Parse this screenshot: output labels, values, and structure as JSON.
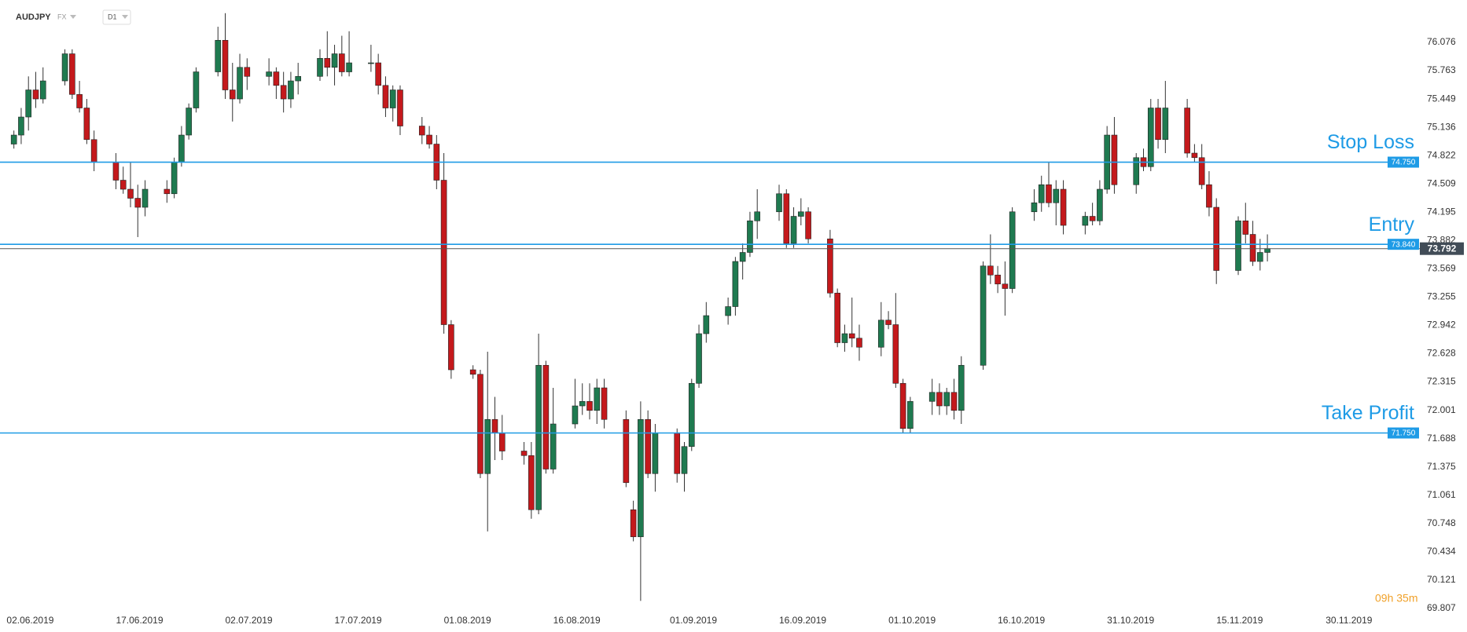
{
  "chart_data": {
    "type": "candlestick",
    "symbol": "AUDJPY",
    "market": "FX",
    "timeframe": "D1",
    "countdown": "09h 35m",
    "up_color": "#1f7a50",
    "down_color": "#c4191c",
    "level_color": "#1e9be6",
    "ylim": [
      69.763,
      76.546
    ],
    "yticks": [
      76.076,
      75.763,
      75.449,
      75.136,
      74.822,
      74.509,
      74.195,
      73.882,
      73.569,
      73.255,
      72.942,
      72.628,
      72.315,
      72.001,
      71.688,
      71.375,
      71.061,
      70.748,
      70.434,
      70.121,
      69.807
    ],
    "xlim": [
      "02.06.2019",
      "12.12.2019"
    ],
    "xticks": [
      "02.06.2019",
      "17.06.2019",
      "02.07.2019",
      "17.07.2019",
      "01.08.2019",
      "16.08.2019",
      "01.09.2019",
      "16.09.2019",
      "01.10.2019",
      "16.10.2019",
      "31.10.2019",
      "15.11.2019",
      "30.11.2019"
    ],
    "grid": false,
    "levels": [
      {
        "name": "Stop Loss",
        "price": {
          "value": 74.75,
          "label": "74.750"
        }
      },
      {
        "name": "Entry",
        "price": {
          "value": 73.84,
          "label": "73.840"
        }
      },
      {
        "name": "Take Profit",
        "price": {
          "value": 71.75,
          "label": "71.750"
        }
      }
    ],
    "last_price": 73.792,
    "candles": [
      {
        "date": "03.06.2019",
        "open": 74.95,
        "high": 75.1,
        "low": 74.9,
        "close": 75.05
      },
      {
        "date": "04.06.2019",
        "open": 75.05,
        "high": 75.35,
        "low": 74.95,
        "close": 75.25
      },
      {
        "date": "05.06.2019",
        "open": 75.25,
        "high": 75.7,
        "low": 75.1,
        "close": 75.55
      },
      {
        "date": "06.06.2019",
        "open": 75.55,
        "high": 75.75,
        "low": 75.35,
        "close": 75.45
      },
      {
        "date": "07.06.2019",
        "open": 75.45,
        "high": 75.8,
        "low": 75.4,
        "close": 75.65
      },
      {
        "date": "10.06.2019",
        "open": 75.65,
        "high": 76.0,
        "low": 75.6,
        "close": 75.95
      },
      {
        "date": "11.06.2019",
        "open": 75.95,
        "high": 76.0,
        "low": 75.45,
        "close": 75.5
      },
      {
        "date": "12.06.2019",
        "open": 75.5,
        "high": 75.65,
        "low": 75.3,
        "close": 75.35
      },
      {
        "date": "13.06.2019",
        "open": 75.35,
        "high": 75.45,
        "low": 74.95,
        "close": 75.0
      },
      {
        "date": "14.06.2019",
        "open": 75.0,
        "high": 75.1,
        "low": 74.65,
        "close": 74.75
      },
      {
        "date": "17.06.2019",
        "open": 74.75,
        "high": 74.85,
        "low": 74.45,
        "close": 74.55
      },
      {
        "date": "18.06.2019",
        "open": 74.55,
        "high": 74.7,
        "low": 74.4,
        "close": 74.45
      },
      {
        "date": "19.06.2019",
        "open": 74.45,
        "high": 74.75,
        "low": 74.25,
        "close": 74.35
      },
      {
        "date": "20.06.2019",
        "open": 74.35,
        "high": 74.5,
        "low": 73.92,
        "close": 74.25
      },
      {
        "date": "21.06.2019",
        "open": 74.25,
        "high": 74.55,
        "low": 74.15,
        "close": 74.45
      },
      {
        "date": "24.06.2019",
        "open": 74.45,
        "high": 74.55,
        "low": 74.3,
        "close": 74.4
      },
      {
        "date": "25.06.2019",
        "open": 74.4,
        "high": 74.8,
        "low": 74.35,
        "close": 74.75
      },
      {
        "date": "26.06.2019",
        "open": 74.75,
        "high": 75.15,
        "low": 74.7,
        "close": 75.05
      },
      {
        "date": "27.06.2019",
        "open": 75.05,
        "high": 75.4,
        "low": 75.0,
        "close": 75.35
      },
      {
        "date": "28.06.2019",
        "open": 75.35,
        "high": 75.8,
        "low": 75.3,
        "close": 75.75
      },
      {
        "date": "01.07.2019",
        "open": 75.75,
        "high": 76.25,
        "low": 75.7,
        "close": 76.1
      },
      {
        "date": "02.07.2019",
        "open": 76.1,
        "high": 76.4,
        "low": 75.45,
        "close": 75.55
      },
      {
        "date": "03.07.2019",
        "open": 75.55,
        "high": 75.85,
        "low": 75.2,
        "close": 75.45
      },
      {
        "date": "04.07.2019",
        "open": 75.45,
        "high": 75.95,
        "low": 75.4,
        "close": 75.8
      },
      {
        "date": "05.07.2019",
        "open": 75.8,
        "high": 75.9,
        "low": 75.55,
        "close": 75.7
      },
      {
        "date": "08.07.2019",
        "open": 75.7,
        "high": 75.9,
        "low": 75.6,
        "close": 75.75
      },
      {
        "date": "09.07.2019",
        "open": 75.75,
        "high": 75.8,
        "low": 75.45,
        "close": 75.6
      },
      {
        "date": "10.07.2019",
        "open": 75.6,
        "high": 75.75,
        "low": 75.3,
        "close": 75.45
      },
      {
        "date": "11.07.2019",
        "open": 75.45,
        "high": 75.75,
        "low": 75.35,
        "close": 75.65
      },
      {
        "date": "12.07.2019",
        "open": 75.65,
        "high": 75.85,
        "low": 75.5,
        "close": 75.7
      },
      {
        "date": "15.07.2019",
        "open": 75.7,
        "high": 76.0,
        "low": 75.65,
        "close": 75.9
      },
      {
        "date": "16.07.2019",
        "open": 75.9,
        "high": 76.2,
        "low": 75.7,
        "close": 75.8
      },
      {
        "date": "17.07.2019",
        "open": 75.8,
        "high": 76.05,
        "low": 75.6,
        "close": 75.95
      },
      {
        "date": "18.07.2019",
        "open": 75.95,
        "high": 76.15,
        "low": 75.7,
        "close": 75.75
      },
      {
        "date": "19.07.2019",
        "open": 75.75,
        "high": 76.2,
        "low": 75.7,
        "close": 75.85
      },
      {
        "date": "22.07.2019",
        "open": 75.85,
        "high": 76.05,
        "low": 75.75,
        "close": 75.85
      },
      {
        "date": "23.07.2019",
        "open": 75.85,
        "high": 75.95,
        "low": 75.5,
        "close": 75.6
      },
      {
        "date": "24.07.2019",
        "open": 75.6,
        "high": 75.7,
        "low": 75.25,
        "close": 75.35
      },
      {
        "date": "25.07.2019",
        "open": 75.35,
        "high": 75.6,
        "low": 75.2,
        "close": 75.55
      },
      {
        "date": "26.07.2019",
        "open": 75.55,
        "high": 75.6,
        "low": 75.05,
        "close": 75.15
      },
      {
        "date": "29.07.2019",
        "open": 75.15,
        "high": 75.25,
        "low": 74.95,
        "close": 75.05
      },
      {
        "date": "30.07.2019",
        "open": 75.05,
        "high": 75.15,
        "low": 74.9,
        "close": 74.95
      },
      {
        "date": "31.07.2019",
        "open": 74.95,
        "high": 75.05,
        "low": 74.45,
        "close": 74.55
      },
      {
        "date": "01.08.2019",
        "open": 74.55,
        "high": 74.85,
        "low": 72.85,
        "close": 72.95
      },
      {
        "date": "02.08.2019",
        "open": 72.95,
        "high": 73.0,
        "low": 72.35,
        "close": 72.45
      },
      {
        "date": "05.08.2019",
        "open": 72.45,
        "high": 72.5,
        "low": 72.35,
        "close": 72.4
      },
      {
        "date": "06.08.2019",
        "open": 72.4,
        "high": 72.45,
        "low": 71.25,
        "close": 71.3
      },
      {
        "date": "07.08.2019",
        "open": 71.3,
        "high": 72.65,
        "low": 70.66,
        "close": 71.9
      },
      {
        "date": "08.08.2019",
        "open": 71.9,
        "high": 72.15,
        "low": 71.45,
        "close": 71.75
      },
      {
        "date": "09.08.2019",
        "open": 71.75,
        "high": 71.95,
        "low": 71.45,
        "close": 71.55
      },
      {
        "date": "12.08.2019",
        "open": 71.55,
        "high": 71.65,
        "low": 71.4,
        "close": 71.5
      },
      {
        "date": "13.08.2019",
        "open": 71.5,
        "high": 71.65,
        "low": 70.8,
        "close": 70.9
      },
      {
        "date": "14.08.2019",
        "open": 70.9,
        "high": 72.85,
        "low": 70.85,
        "close": 72.5
      },
      {
        "date": "15.08.2019",
        "open": 72.5,
        "high": 72.55,
        "low": 71.3,
        "close": 71.35
      },
      {
        "date": "16.08.2019",
        "open": 71.35,
        "high": 72.25,
        "low": 71.3,
        "close": 71.85
      },
      {
        "date": "19.08.2019",
        "open": 71.85,
        "high": 72.35,
        "low": 71.8,
        "close": 72.05
      },
      {
        "date": "20.08.2019",
        "open": 72.05,
        "high": 72.3,
        "low": 71.95,
        "close": 72.1
      },
      {
        "date": "21.08.2019",
        "open": 72.1,
        "high": 72.3,
        "low": 71.9,
        "close": 72.0
      },
      {
        "date": "22.08.2019",
        "open": 72.0,
        "high": 72.35,
        "low": 71.85,
        "close": 72.25
      },
      {
        "date": "23.08.2019",
        "open": 72.25,
        "high": 72.35,
        "low": 71.8,
        "close": 71.9
      },
      {
        "date": "26.08.2019",
        "open": 71.9,
        "high": 72.0,
        "low": 71.15,
        "close": 71.2
      },
      {
        "date": "27.08.2019",
        "open": 70.9,
        "high": 71.0,
        "low": 70.55,
        "close": 70.6
      },
      {
        "date": "28.08.2019",
        "open": 70.6,
        "high": 72.1,
        "low": 69.89,
        "close": 71.9
      },
      {
        "date": "29.08.2019",
        "open": 71.9,
        "high": 72.0,
        "low": 71.25,
        "close": 71.3
      },
      {
        "date": "30.08.2019",
        "open": 71.3,
        "high": 71.85,
        "low": 71.1,
        "close": 71.75
      },
      {
        "date": "02.09.2019",
        "open": 71.75,
        "high": 71.8,
        "low": 71.2,
        "close": 71.3
      },
      {
        "date": "03.09.2019",
        "open": 71.3,
        "high": 71.65,
        "low": 71.1,
        "close": 71.6
      },
      {
        "date": "04.09.2019",
        "open": 71.6,
        "high": 72.35,
        "low": 71.55,
        "close": 72.3
      },
      {
        "date": "05.09.2019",
        "open": 72.3,
        "high": 72.95,
        "low": 72.25,
        "close": 72.85
      },
      {
        "date": "06.09.2019",
        "open": 72.85,
        "high": 73.2,
        "low": 72.75,
        "close": 73.05
      },
      {
        "date": "09.09.2019",
        "open": 73.05,
        "high": 73.25,
        "low": 72.95,
        "close": 73.15
      },
      {
        "date": "10.09.2019",
        "open": 73.15,
        "high": 73.7,
        "low": 73.05,
        "close": 73.65
      },
      {
        "date": "11.09.2019",
        "open": 73.65,
        "high": 73.85,
        "low": 73.45,
        "close": 73.75
      },
      {
        "date": "12.09.2019",
        "open": 73.75,
        "high": 74.2,
        "low": 73.7,
        "close": 74.1
      },
      {
        "date": "13.09.2019",
        "open": 74.1,
        "high": 74.45,
        "low": 73.9,
        "close": 74.2
      },
      {
        "date": "16.09.2019",
        "open": 74.2,
        "high": 74.5,
        "low": 74.1,
        "close": 74.4
      },
      {
        "date": "17.09.2019",
        "open": 74.4,
        "high": 74.45,
        "low": 73.8,
        "close": 73.85
      },
      {
        "date": "18.09.2019",
        "open": 73.85,
        "high": 74.25,
        "low": 73.8,
        "close": 74.15
      },
      {
        "date": "19.09.2019",
        "open": 74.15,
        "high": 74.35,
        "low": 74.05,
        "close": 74.2
      },
      {
        "date": "20.09.2019",
        "open": 74.2,
        "high": 74.25,
        "low": 73.85,
        "close": 73.9
      },
      {
        "date": "23.09.2019",
        "open": 73.9,
        "high": 74.0,
        "low": 73.25,
        "close": 73.3
      },
      {
        "date": "24.09.2019",
        "open": 73.3,
        "high": 73.35,
        "low": 72.7,
        "close": 72.75
      },
      {
        "date": "25.09.2019",
        "open": 72.75,
        "high": 72.95,
        "low": 72.65,
        "close": 72.85
      },
      {
        "date": "26.09.2019",
        "open": 72.85,
        "high": 73.25,
        "low": 72.7,
        "close": 72.8
      },
      {
        "date": "27.09.2019",
        "open": 72.8,
        "high": 72.95,
        "low": 72.55,
        "close": 72.7
      },
      {
        "date": "30.09.2019",
        "open": 72.7,
        "high": 73.2,
        "low": 72.6,
        "close": 73.0
      },
      {
        "date": "01.10.2019",
        "open": 73.0,
        "high": 73.1,
        "low": 72.9,
        "close": 72.95
      },
      {
        "date": "02.10.2019",
        "open": 72.95,
        "high": 73.3,
        "low": 72.25,
        "close": 72.3
      },
      {
        "date": "03.10.2019",
        "open": 72.3,
        "high": 72.35,
        "low": 71.75,
        "close": 71.8
      },
      {
        "date": "04.10.2019",
        "open": 71.8,
        "high": 72.15,
        "low": 71.75,
        "close": 72.1
      },
      {
        "date": "07.10.2019",
        "open": 72.1,
        "high": 72.35,
        "low": 71.95,
        "close": 72.2
      },
      {
        "date": "08.10.2019",
        "open": 72.2,
        "high": 72.3,
        "low": 71.95,
        "close": 72.05
      },
      {
        "date": "09.10.2019",
        "open": 72.05,
        "high": 72.25,
        "low": 71.95,
        "close": 72.2
      },
      {
        "date": "10.10.2019",
        "open": 72.2,
        "high": 72.35,
        "low": 71.9,
        "close": 72.0
      },
      {
        "date": "11.10.2019",
        "open": 72.0,
        "high": 72.6,
        "low": 71.85,
        "close": 72.5
      },
      {
        "date": "14.10.2019",
        "open": 72.5,
        "high": 73.65,
        "low": 72.45,
        "close": 73.6
      },
      {
        "date": "15.10.2019",
        "open": 73.6,
        "high": 73.95,
        "low": 73.4,
        "close": 73.5
      },
      {
        "date": "16.10.2019",
        "open": 73.5,
        "high": 73.6,
        "low": 73.3,
        "close": 73.4
      },
      {
        "date": "17.10.2019",
        "open": 73.4,
        "high": 73.65,
        "low": 73.05,
        "close": 73.35
      },
      {
        "date": "18.10.2019",
        "open": 73.35,
        "high": 74.25,
        "low": 73.3,
        "close": 74.2
      },
      {
        "date": "21.10.2019",
        "open": 74.2,
        "high": 74.45,
        "low": 74.1,
        "close": 74.3
      },
      {
        "date": "22.10.2019",
        "open": 74.3,
        "high": 74.6,
        "low": 74.2,
        "close": 74.5
      },
      {
        "date": "23.10.2019",
        "open": 74.5,
        "high": 74.75,
        "low": 74.25,
        "close": 74.3
      },
      {
        "date": "24.10.2019",
        "open": 74.3,
        "high": 74.55,
        "low": 74.05,
        "close": 74.45
      },
      {
        "date": "25.10.2019",
        "open": 74.45,
        "high": 74.55,
        "low": 73.95,
        "close": 74.05
      },
      {
        "date": "28.10.2019",
        "open": 74.05,
        "high": 74.2,
        "low": 73.95,
        "close": 74.15
      },
      {
        "date": "29.10.2019",
        "open": 74.15,
        "high": 74.3,
        "low": 74.05,
        "close": 74.1
      },
      {
        "date": "30.10.2019",
        "open": 74.1,
        "high": 74.55,
        "low": 74.05,
        "close": 74.45
      },
      {
        "date": "31.10.2019",
        "open": 74.45,
        "high": 75.15,
        "low": 74.4,
        "close": 75.05
      },
      {
        "date": "01.11.2019",
        "open": 75.05,
        "high": 75.25,
        "low": 74.4,
        "close": 74.5
      },
      {
        "date": "04.11.2019",
        "open": 74.5,
        "high": 74.85,
        "low": 74.4,
        "close": 74.8
      },
      {
        "date": "05.11.2019",
        "open": 74.8,
        "high": 74.9,
        "low": 74.65,
        "close": 74.7
      },
      {
        "date": "06.11.2019",
        "open": 74.7,
        "high": 75.45,
        "low": 74.65,
        "close": 75.35
      },
      {
        "date": "07.11.2019",
        "open": 75.35,
        "high": 75.45,
        "low": 74.9,
        "close": 75.0
      },
      {
        "date": "08.11.2019",
        "open": 75.0,
        "high": 75.65,
        "low": 74.85,
        "close": 75.35
      },
      {
        "date": "11.11.2019",
        "open": 75.35,
        "high": 75.45,
        "low": 74.8,
        "close": 74.85
      },
      {
        "date": "12.11.2019",
        "open": 74.85,
        "high": 74.95,
        "low": 74.75,
        "close": 74.8
      },
      {
        "date": "13.11.2019",
        "open": 74.8,
        "high": 74.95,
        "low": 74.45,
        "close": 74.5
      },
      {
        "date": "14.11.2019",
        "open": 74.5,
        "high": 74.65,
        "low": 74.15,
        "close": 74.25
      },
      {
        "date": "15.11.2019",
        "open": 74.25,
        "high": 74.35,
        "low": 73.4,
        "close": 73.55
      },
      {
        "date": "18.11.2019",
        "open": 73.55,
        "high": 74.15,
        "low": 73.5,
        "close": 74.1
      },
      {
        "date": "19.11.2019",
        "open": 74.1,
        "high": 74.3,
        "low": 73.85,
        "close": 73.95
      },
      {
        "date": "20.11.2019",
        "open": 73.95,
        "high": 74.1,
        "low": 73.6,
        "close": 73.65
      },
      {
        "date": "21.11.2019",
        "open": 73.65,
        "high": 73.9,
        "low": 73.55,
        "close": 73.75
      },
      {
        "date": "22.11.2019",
        "open": 73.75,
        "high": 73.95,
        "low": 73.65,
        "close": 73.792
      }
    ]
  }
}
